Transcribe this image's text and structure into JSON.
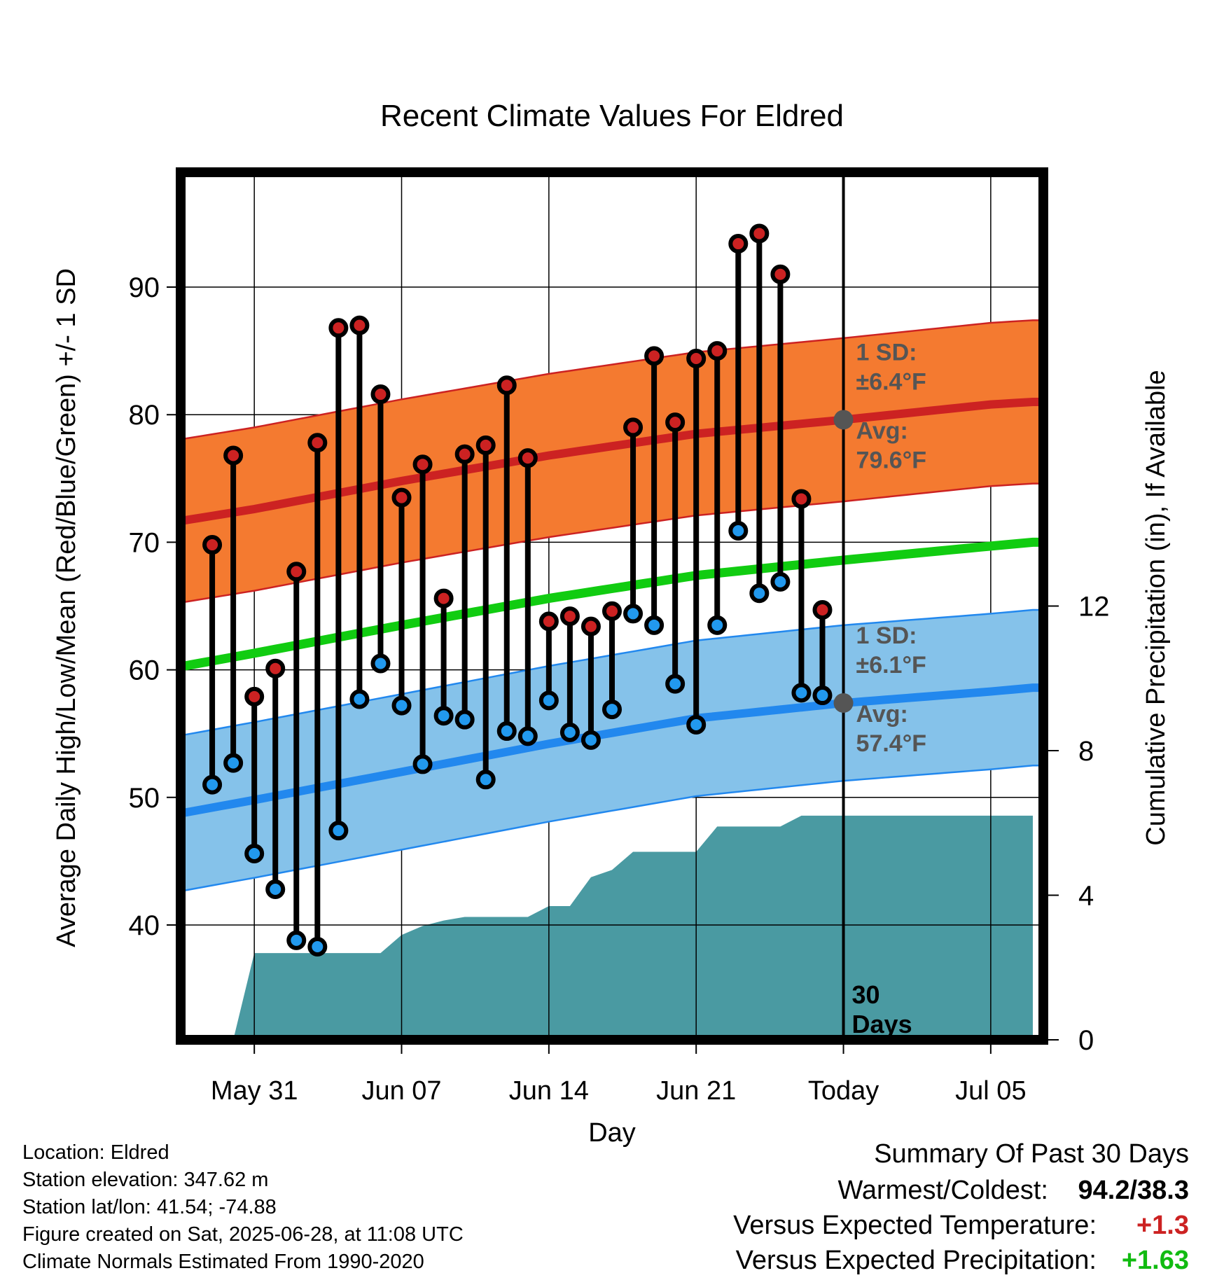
{
  "chart_data": {
    "type": "line",
    "title": "Recent Climate Values For Eldred",
    "xlabel": "Day",
    "ylabel_left": "Average Daily High/Low/Mean (Red/Blue/Green) +/- 1 SD",
    "ylabel_right": "Cumulative Precipitation (in), If Available",
    "x_range": [
      -3.5,
      37.5
    ],
    "ylim": [
      31,
      99
    ],
    "ylim_right": [
      0,
      24
    ],
    "x_ticks": [
      {
        "day": 0,
        "label": "May 31"
      },
      {
        "day": 7,
        "label": "Jun 07"
      },
      {
        "day": 14,
        "label": "Jun 14"
      },
      {
        "day": 21,
        "label": "Jun 21"
      },
      {
        "day": 28,
        "label": "Today"
      },
      {
        "day": 35,
        "label": "Jul 05"
      }
    ],
    "y_ticks_left": [
      40,
      50,
      60,
      70,
      80,
      90
    ],
    "y_ticks_right": [
      0,
      4,
      8,
      12
    ],
    "grid": true,
    "today_day": 28,
    "today_label": "30\nDays",
    "normals": {
      "days": [
        -3,
        0,
        7,
        14,
        21,
        28,
        35,
        37
      ],
      "high_avg": [
        71.8,
        72.6,
        74.8,
        76.8,
        78.5,
        79.6,
        80.8,
        81.0
      ],
      "high_sd": 6.4,
      "mean_avg": [
        60.4,
        61.3,
        63.5,
        65.6,
        67.4,
        68.6,
        69.7,
        70.0
      ],
      "low_avg": [
        48.9,
        49.8,
        52.0,
        54.2,
        56.2,
        57.4,
        58.3,
        58.6
      ],
      "low_sd": 6.1
    },
    "series": [
      {
        "name": "High",
        "color": "#cc2222",
        "days": [
          -2,
          -1,
          0,
          1,
          2,
          3,
          4,
          5,
          6,
          7,
          8,
          9,
          10,
          11,
          12,
          13,
          14,
          15,
          16,
          17,
          18,
          19,
          20,
          21,
          22,
          23,
          24,
          25,
          26,
          27
        ],
        "values": [
          69.8,
          76.8,
          57.9,
          60.1,
          67.7,
          77.8,
          86.8,
          87.0,
          81.6,
          73.5,
          76.1,
          65.6,
          76.9,
          77.6,
          82.3,
          76.6,
          63.8,
          64.2,
          63.4,
          64.6,
          79.0,
          84.6,
          79.4,
          84.4,
          85.0,
          93.4,
          94.2,
          91.0,
          73.4,
          64.7
        ]
      },
      {
        "name": "Low",
        "color": "#2299ee",
        "days": [
          -2,
          -1,
          0,
          1,
          2,
          3,
          4,
          5,
          6,
          7,
          8,
          9,
          10,
          11,
          12,
          13,
          14,
          15,
          16,
          17,
          18,
          19,
          20,
          21,
          22,
          23,
          24,
          25,
          26,
          27
        ],
        "values": [
          51.0,
          52.7,
          45.6,
          42.8,
          38.8,
          38.3,
          47.4,
          57.7,
          60.5,
          57.2,
          52.6,
          56.4,
          56.1,
          51.4,
          55.2,
          54.8,
          57.6,
          55.1,
          54.5,
          56.9,
          64.4,
          63.5,
          58.9,
          55.7,
          63.5,
          70.9,
          66.0,
          66.9,
          58.2,
          58.0
        ]
      },
      {
        "name": "Cumulative Precipitation",
        "days": [
          -1,
          0,
          1,
          2,
          3,
          4,
          5,
          6,
          7,
          8,
          9,
          10,
          11,
          12,
          13,
          14,
          15,
          16,
          17,
          18,
          19,
          20,
          21,
          22,
          23,
          24,
          25,
          26,
          27,
          28,
          29,
          30,
          31,
          32,
          33,
          34,
          35,
          36,
          37
        ],
        "values": [
          0,
          2.4,
          2.4,
          2.4,
          2.4,
          2.4,
          2.4,
          2.4,
          2.9,
          3.15,
          3.3,
          3.4,
          3.4,
          3.4,
          3.4,
          3.7,
          3.7,
          4.5,
          4.7,
          5.2,
          5.2,
          5.2,
          5.2,
          5.9,
          5.9,
          5.9,
          5.9,
          6.2,
          6.2,
          6.2,
          6.2,
          6.2,
          6.2,
          6.2,
          6.2,
          6.2,
          6.2,
          6.2,
          6.2
        ]
      }
    ],
    "annotations": {
      "high_sd_label": "1 SD:",
      "high_sd_value": "±6.4°F",
      "high_avg_label": "Avg:",
      "high_avg_value": "79.6°F",
      "low_sd_label": "1 SD:",
      "low_sd_value": "±6.1°F",
      "low_avg_label": "Avg:",
      "low_avg_value": "57.4°F"
    },
    "colors": {
      "high_band": "#f47a30",
      "high_line": "#cc2222",
      "mean_line": "#11cc11",
      "low_band": "#85c2ea",
      "low_line": "#2288ee",
      "precip": "#4a9aa2"
    }
  },
  "info": {
    "lines": [
      "Location: Eldred",
      "Station elevation: 347.62 m",
      "Station lat/lon: 41.54; -74.88",
      "Figure created on Sat, 2025-06-28, at 11:08 UTC",
      "Climate Normals Estimated From 1990-2020"
    ]
  },
  "summary": {
    "title": "Summary Of Past 30 Days",
    "warmest_label": "Warmest/Coldest:",
    "warmest_value": "94.2/38.3",
    "temp_label": "Versus Expected Temperature:",
    "temp_value": "+1.3",
    "temp_color": "#cc2222",
    "precip_label": "Versus Expected Precipitation:",
    "precip_value": "+1.63",
    "precip_color": "#11bb11"
  }
}
